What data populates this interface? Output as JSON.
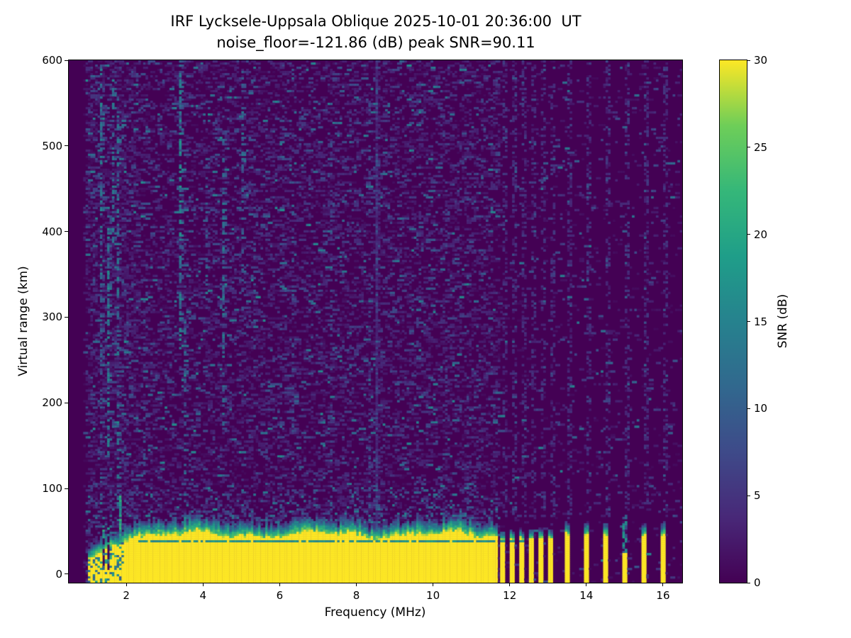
{
  "figure": {
    "title": "IRF Lycksele-Uppsala Oblique 2025-10-01 20:36:00  UT",
    "subtitle": "noise_floor=-121.86 (dB) peak SNR=90.11"
  },
  "chart_data": {
    "type": "heatmap",
    "title": "IRF Lycksele-Uppsala Oblique 2025-10-01 20:36:00  UT",
    "subtitle": "noise_floor=-121.86 (dB) peak SNR=90.11",
    "station": "IRF Lycksele-Uppsala Oblique",
    "timestamp_ut": "2025-10-01 20:36:00",
    "noise_floor_db": -121.86,
    "peak_snr_db": 90.11,
    "xlabel": "Frequency (MHz)",
    "ylabel": "Virtual range (km)",
    "x_range": [
      0.5,
      16.5
    ],
    "y_range": [
      -10,
      600
    ],
    "x_ticks": [
      2,
      4,
      6,
      8,
      10,
      12,
      14,
      16
    ],
    "y_ticks": [
      0,
      100,
      200,
      300,
      400,
      500,
      600
    ],
    "grid": false,
    "colorbar": {
      "label": "SNR (dB)",
      "range": [
        0,
        30
      ],
      "ticks": [
        0,
        5,
        10,
        15,
        20,
        25,
        30
      ],
      "colormap": "viridis"
    },
    "viridis_stops": [
      [
        0.0,
        "#440154"
      ],
      [
        0.125,
        "#482878"
      ],
      [
        0.25,
        "#3e4a89"
      ],
      [
        0.375,
        "#31688e"
      ],
      [
        0.5,
        "#26828e"
      ],
      [
        0.625,
        "#1f9e89"
      ],
      [
        0.75,
        "#35b779"
      ],
      [
        0.875,
        "#6ece58"
      ],
      [
        1.0,
        "#fde725"
      ]
    ],
    "features": {
      "background_snr_db": 0,
      "quiet_band_below_mhz": 0.95,
      "ground_band": {
        "f_start_mhz": 1.0,
        "f_end_mhz": 11.67,
        "top_km_mean": 46,
        "top_km_at_1mhz": 16,
        "transition_km": 16,
        "snr_db": 30,
        "thin_echo_line_km": 38.5,
        "thin_echo_line_f_range_mhz": [
          2.3,
          12.35
        ],
        "ragged_below_mhz": 1.95,
        "notches_mhz": [
          [
            1.36,
            1.45
          ],
          [
            1.5,
            1.59
          ]
        ],
        "spike": {
          "f_mhz": 1.85,
          "top_km": 92
        }
      },
      "dense_stripes": {
        "f_start_mhz": 11.82,
        "spacing_mhz": 0.2515,
        "count": 6,
        "half_width_mhz": 0.07,
        "top_km": 42,
        "snr_db": 30
      },
      "isolated_stripes": {
        "freqs_mhz": [
          13.53,
          14.02,
          14.53,
          15.03,
          15.53,
          16.01
        ],
        "half_width_mhz": 0.062,
        "top_km": 46,
        "snr_db": 30,
        "weak_freqs_mhz": [
          15.03
        ],
        "weak_top_km": 24
      },
      "interference_columns": [
        {
          "f_mhz": 1.33,
          "km": [
            320,
            600
          ],
          "density": 0.5,
          "snr_db": [
            8,
            16
          ]
        },
        {
          "f_mhz": 1.37,
          "km": [
            80,
            320
          ],
          "density": 0.3,
          "snr_db": [
            6,
            12
          ]
        },
        {
          "f_mhz": 1.53,
          "km": [
            140,
            430
          ],
          "density": 0.5,
          "snr_db": [
            9,
            17
          ]
        },
        {
          "f_mhz": 1.63,
          "km": [
            370,
            595
          ],
          "density": 0.45,
          "snr_db": [
            9,
            16
          ]
        },
        {
          "f_mhz": 1.76,
          "km": [
            90,
            555
          ],
          "density": 0.38,
          "snr_db": [
            8,
            15
          ]
        },
        {
          "f_mhz": 2.48,
          "km": [
            100,
            300
          ],
          "density": 0.2,
          "snr_db": [
            5,
            10
          ]
        },
        {
          "f_mhz": 3.43,
          "km": [
            270,
            600
          ],
          "density": 0.55,
          "snr_db": [
            9,
            18
          ]
        },
        {
          "f_mhz": 3.55,
          "km": [
            110,
            300
          ],
          "density": 0.3,
          "snr_db": [
            7,
            13
          ]
        },
        {
          "f_mhz": 4.12,
          "km": [
            300,
            490
          ],
          "density": 0.28,
          "snr_db": [
            6,
            12
          ]
        },
        {
          "f_mhz": 4.53,
          "km": [
            170,
            520
          ],
          "density": 0.38,
          "snr_db": [
            8,
            15
          ]
        },
        {
          "f_mhz": 5.02,
          "km": [
            290,
            590
          ],
          "density": 0.28,
          "snr_db": [
            7,
            13
          ]
        },
        {
          "f_mhz": 5.32,
          "km": [
            240,
            440
          ],
          "density": 0.22,
          "snr_db": [
            6,
            11
          ]
        },
        {
          "f_mhz": 6.37,
          "km": [
            60,
            430
          ],
          "density": 0.22,
          "snr_db": [
            5,
            10
          ]
        },
        {
          "f_mhz": 7.32,
          "km": [
            100,
            510
          ],
          "density": 0.18,
          "snr_db": [
            4,
            9
          ]
        },
        {
          "f_mhz": 8.32,
          "km": [
            80,
            560
          ],
          "density": 0.2,
          "snr_db": [
            5,
            10
          ]
        },
        {
          "f_mhz": 8.56,
          "km": [
            -10,
            600
          ],
          "density": 0.95,
          "snr_db": [
            2.5,
            4.5
          ]
        },
        {
          "f_mhz": 8.56,
          "km": [
            50,
            600
          ],
          "density": 0.3,
          "snr_db": [
            5,
            10
          ]
        },
        {
          "f_mhz": 9.62,
          "km": [
            60,
            410
          ],
          "density": 0.18,
          "snr_db": [
            4,
            8
          ]
        },
        {
          "f_mhz": 10.32,
          "km": [
            100,
            500
          ],
          "density": 0.16,
          "snr_db": [
            4,
            8
          ]
        },
        {
          "f_mhz": 10.92,
          "km": [
            60,
            310
          ],
          "density": 0.2,
          "snr_db": [
            5,
            9
          ]
        }
      ]
    }
  }
}
